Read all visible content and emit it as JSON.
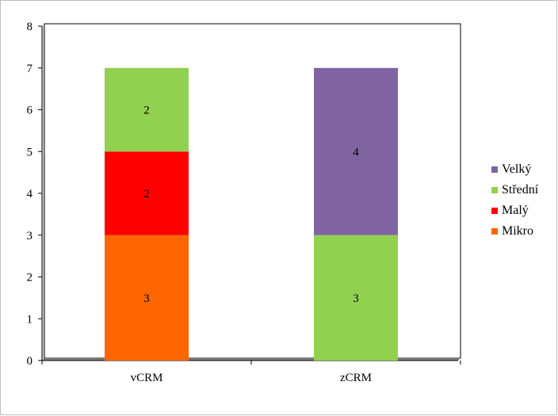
{
  "chart_data": {
    "type": "bar",
    "stacked": true,
    "categories": [
      "vCRM",
      "zCRM"
    ],
    "series": [
      {
        "name": "Mikro",
        "color": "#ff6600",
        "values": [
          3,
          0
        ]
      },
      {
        "name": "Malý",
        "color": "#ff0000",
        "values": [
          2,
          0
        ]
      },
      {
        "name": "Střední",
        "color": "#92d050",
        "values": [
          2,
          3
        ]
      },
      {
        "name": "Velký",
        "color": "#8064a2",
        "values": [
          0,
          4
        ]
      }
    ],
    "data_labels": true,
    "ylim": [
      0,
      8
    ],
    "yticks": [
      0,
      1,
      2,
      3,
      4,
      5,
      6,
      7,
      8
    ],
    "grid": false,
    "legend_position": "right",
    "legend_order": [
      "Velký",
      "Střední",
      "Malý",
      "Mikro"
    ],
    "title": "",
    "xlabel": "",
    "ylabel": ""
  }
}
